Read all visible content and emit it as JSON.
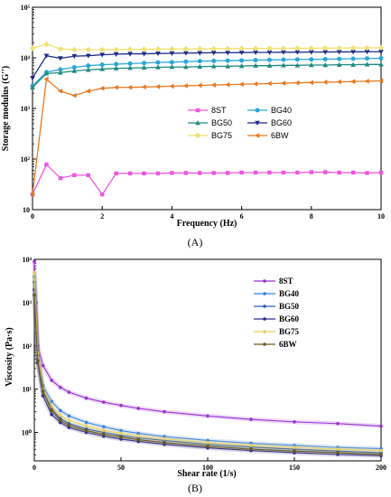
{
  "panels": {
    "a_label": "(A)",
    "b_label": "(B)"
  },
  "chart_data": [
    {
      "type": "line",
      "title": "",
      "xlabel": "Frequency (Hz)",
      "ylabel": "Storage modulus (G'')",
      "xlim": [
        0,
        10
      ],
      "ylim": [
        10,
        100000
      ],
      "yscale": "log",
      "xticks": [
        "0",
        "2",
        "4",
        "6",
        "8",
        "10"
      ],
      "yticks": [
        {
          "value": 10,
          "label": "10"
        },
        {
          "value": 100,
          "label": "10²"
        },
        {
          "value": 1000,
          "label": "10³"
        },
        {
          "value": 10000,
          "label": "10⁴"
        },
        {
          "value": 100000,
          "label": "10⁵"
        }
      ],
      "legend_position": "center-right",
      "x": [
        0,
        0.4,
        0.8,
        1.2,
        1.6,
        2.0,
        2.4,
        2.8,
        3.2,
        3.6,
        4.0,
        4.4,
        4.8,
        5.2,
        5.6,
        6.0,
        6.4,
        6.8,
        7.2,
        7.6,
        8.0,
        8.4,
        8.8,
        9.2,
        9.6,
        10.0
      ],
      "series": [
        {
          "name": "8ST",
          "color": "#ee55dd",
          "marker": "square",
          "values": [
            20,
            78,
            42,
            48,
            48,
            20,
            52,
            52,
            52,
            52,
            53,
            53,
            53,
            53,
            53,
            54,
            54,
            54,
            54,
            54,
            55,
            55,
            54,
            54,
            53,
            54
          ]
        },
        {
          "name": "BG40",
          "color": "#2aa6d8",
          "marker": "circle",
          "values": [
            2800,
            5200,
            5900,
            6500,
            7000,
            7300,
            7500,
            7700,
            7900,
            8100,
            8200,
            8400,
            8600,
            8700,
            8800,
            8900,
            9000,
            9100,
            9200,
            9300,
            9300,
            9400,
            9500,
            9600,
            9700,
            9800
          ]
        },
        {
          "name": "BG50",
          "color": "#1f8a80",
          "marker": "triangle-up",
          "values": [
            2600,
            4900,
            5100,
            5500,
            5800,
            6000,
            6200,
            6300,
            6400,
            6500,
            6600,
            6600,
            6700,
            6800,
            6800,
            6900,
            7000,
            7000,
            7100,
            7100,
            7200,
            7200,
            7300,
            7300,
            7400,
            7400
          ]
        },
        {
          "name": "BG60",
          "color": "#1f2a8a",
          "marker": "triangle-down",
          "values": [
            4000,
            11000,
            9800,
            10800,
            11000,
            11500,
            11800,
            12000,
            12000,
            12200,
            12300,
            12400,
            12500,
            12600,
            12600,
            12700,
            12800,
            12800,
            12900,
            12900,
            13000,
            13000,
            13100,
            13100,
            13200,
            13200
          ]
        },
        {
          "name": "BG75",
          "color": "#f0e070",
          "marker": "diamond",
          "values": [
            15500,
            18500,
            15000,
            14500,
            14500,
            14500,
            14600,
            14700,
            14800,
            14900,
            15000,
            15000,
            15100,
            15200,
            15200,
            15300,
            15300,
            15400,
            15400,
            15500,
            15500,
            15600,
            15600,
            15700,
            15700,
            15800
          ]
        },
        {
          "name": "6BW",
          "color": "#e8781e",
          "marker": "tri-left",
          "values": [
            20,
            3800,
            2200,
            1800,
            2200,
            2500,
            2600,
            2600,
            2650,
            2700,
            2750,
            2800,
            2850,
            2900,
            2950,
            3000,
            3050,
            3100,
            3150,
            3200,
            3250,
            3300,
            3350,
            3400,
            3450,
            3500
          ]
        }
      ]
    },
    {
      "type": "line",
      "title": "",
      "xlabel": "Shear rate (1/s)",
      "ylabel": "Viscosity (Pa·s)",
      "xlim": [
        0,
        200
      ],
      "ylim": [
        0.22,
        10000
      ],
      "yscale": "log",
      "xticks": [
        "0",
        "50",
        "100",
        "150",
        "200"
      ],
      "yticks": [
        {
          "value": 1,
          "label": "10⁰"
        },
        {
          "value": 10,
          "label": "10¹"
        },
        {
          "value": 100,
          "label": "10²"
        },
        {
          "value": 1000,
          "label": "10³"
        },
        {
          "value": 10000,
          "label": "10⁴"
        }
      ],
      "legend_position": "top-right",
      "x": [
        0,
        2,
        5,
        10,
        15,
        20,
        30,
        40,
        50,
        60,
        75,
        100,
        125,
        150,
        175,
        200
      ],
      "series": [
        {
          "name": "8ST",
          "color": "#9b30d0",
          "values": [
            9000,
            100,
            35,
            16,
            11,
            8.5,
            6.2,
            5.0,
            4.2,
            3.6,
            3.0,
            2.4,
            2.0,
            1.75,
            1.6,
            1.4
          ]
        },
        {
          "name": "BG40",
          "color": "#3a80e0",
          "values": [
            4000,
            60,
            12,
            5.2,
            3.2,
            2.4,
            1.7,
            1.35,
            1.1,
            0.95,
            0.8,
            0.65,
            0.56,
            0.5,
            0.45,
            0.42
          ]
        },
        {
          "name": "BG50",
          "color": "#2a60b0",
          "values": [
            3000,
            50,
            9,
            3.5,
            2.1,
            1.6,
            1.2,
            1.0,
            0.85,
            0.75,
            0.65,
            0.53,
            0.46,
            0.41,
            0.37,
            0.34
          ]
        },
        {
          "name": "BG60",
          "color": "#302a90",
          "values": [
            2000,
            40,
            7,
            2.6,
            1.7,
            1.3,
            1.0,
            0.82,
            0.7,
            0.62,
            0.53,
            0.44,
            0.38,
            0.34,
            0.31,
            0.29
          ]
        },
        {
          "name": "BG75",
          "color": "#e8d060",
          "values": [
            5000,
            70,
            10,
            4.0,
            2.5,
            1.9,
            1.4,
            1.12,
            0.95,
            0.83,
            0.71,
            0.58,
            0.5,
            0.45,
            0.41,
            0.38
          ]
        },
        {
          "name": "6BW",
          "color": "#6a5a20",
          "values": [
            1500,
            45,
            9,
            3.2,
            1.9,
            1.45,
            1.1,
            0.9,
            0.78,
            0.68,
            0.58,
            0.48,
            0.41,
            0.37,
            0.34,
            0.31
          ]
        }
      ]
    }
  ]
}
